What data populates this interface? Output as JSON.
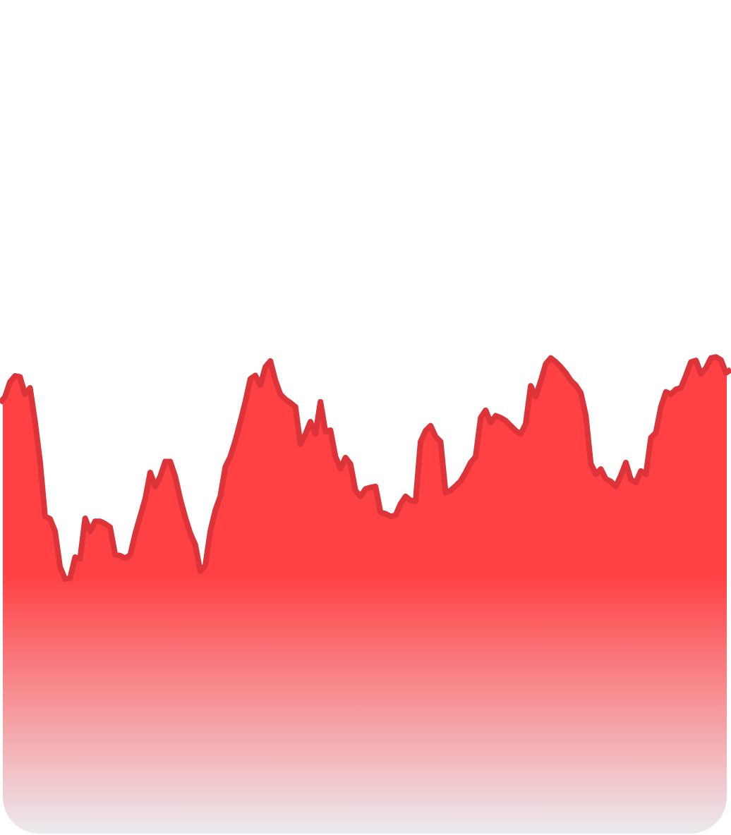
{
  "chart_data": {
    "type": "area",
    "title": "",
    "xlabel": "",
    "ylabel": "",
    "grid": false,
    "legend": "none",
    "line_color": "#dc3438",
    "fill_top_color": "#ff4144",
    "fill_bottom_color": "#ecebf0",
    "ylim": [
      0,
      100
    ],
    "series": [
      {
        "name": "",
        "values": [
          86.8,
          88.0,
          91.0,
          92.2,
          92.0,
          88.5,
          89.8,
          83.0,
          75.0,
          64.0,
          63.5,
          61.0,
          53.8,
          51.4,
          51.6,
          55.8,
          55.5,
          63.6,
          61.0,
          63.0,
          63.0,
          62.5,
          61.8,
          56.3,
          56.1,
          55.6,
          56.2,
          60.5,
          64.0,
          67.5,
          72.8,
          70.0,
          72.0,
          75.0,
          75.0,
          72.0,
          67.5,
          63.8,
          60.6,
          58.3,
          53.0,
          54.1,
          61.0,
          65.2,
          68.0,
          73.9,
          76.0,
          79.2,
          83.0,
          87.0,
          91.6,
          92.3,
          90.3,
          94.0,
          95.2,
          91.3,
          88.5,
          87.5,
          86.8,
          86.0,
          78.5,
          80.5,
          83.0,
          80.5,
          87.0,
          81.0,
          81.3,
          76.0,
          73.6,
          75.8,
          74.5,
          69.2,
          68.0,
          69.5,
          69.8,
          70.0,
          64.8,
          64.5,
          64.0,
          64.2,
          66.5,
          68.0,
          67.2,
          67.0,
          79.0,
          81.2,
          82.2,
          80.0,
          79.0,
          68.8,
          69.2,
          70.1,
          71.1,
          72.8,
          74.8,
          76.0,
          83.8,
          85.3,
          82.8,
          84.2,
          83.8,
          83.2,
          82.2,
          81.2,
          80.5,
          82.6,
          90.2,
          88.0,
          91.2,
          94.6,
          95.8,
          95.0,
          94.0,
          92.8,
          91.3,
          90.3,
          88.8,
          84.3,
          74.6,
          72.5,
          73.5,
          71.5,
          71.0,
          70.0,
          72.2,
          74.8,
          71.4,
          70.8,
          73.1,
          72.4,
          79.8,
          80.8,
          86.0,
          89.0,
          88.5,
          89.5,
          89.8,
          92.3,
          95.0,
          95.3,
          92.6,
          93.8,
          95.8,
          96.0,
          95.4,
          92.8,
          93.5
        ]
      }
    ]
  }
}
